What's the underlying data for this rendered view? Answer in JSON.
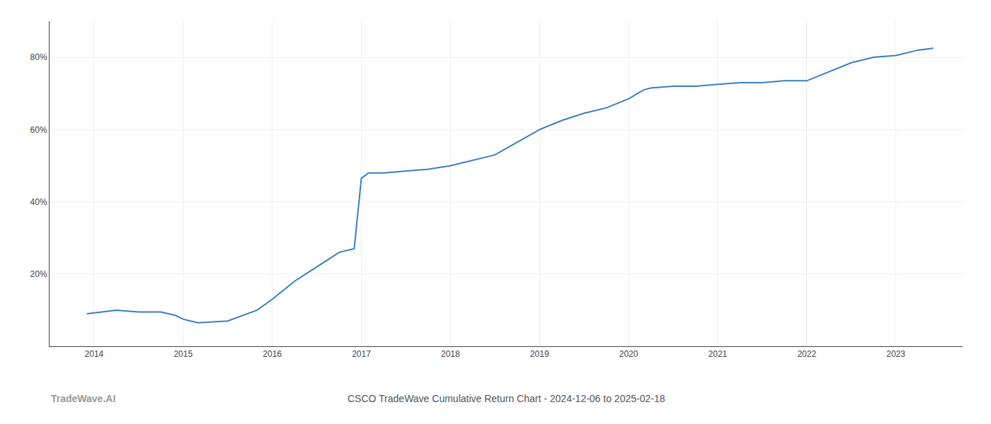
{
  "chart_data": {
    "type": "line",
    "title": "CSCO TradeWave Cumulative Return Chart - 2024-12-06 to 2025-02-18",
    "annotations": [
      "TradeWave.AI"
    ],
    "x": [
      2013.92,
      2014.08,
      2014.25,
      2014.5,
      2014.75,
      2014.92,
      2015.0,
      2015.08,
      2015.17,
      2015.5,
      2015.83,
      2016.0,
      2016.25,
      2016.5,
      2016.75,
      2016.92,
      2017.0,
      2017.08,
      2017.25,
      2017.5,
      2017.75,
      2018.0,
      2018.25,
      2018.5,
      2019.0,
      2019.25,
      2019.5,
      2019.75,
      2020.0,
      2020.17,
      2020.25,
      2020.5,
      2020.75,
      2021.0,
      2021.25,
      2021.5,
      2021.75,
      2022.0,
      2022.25,
      2022.5,
      2022.75,
      2023.0,
      2023.25,
      2023.42
    ],
    "values": [
      9.0,
      9.5,
      10.0,
      9.5,
      9.5,
      8.5,
      7.5,
      7.0,
      6.5,
      7.0,
      10.0,
      13.0,
      18.0,
      22.0,
      26.0,
      27.0,
      46.5,
      48.0,
      48.0,
      48.5,
      49.0,
      50.0,
      51.5,
      53.0,
      60.0,
      62.5,
      64.5,
      66.0,
      68.5,
      71.0,
      71.5,
      72.0,
      72.0,
      72.5,
      73.0,
      73.0,
      73.5,
      73.5,
      76.0,
      78.5,
      80.0,
      80.5,
      82.0,
      82.5
    ],
    "color": "#3a7ebf",
    "xlim": [
      2013.5,
      2023.75
    ],
    "ylim": [
      0,
      90
    ],
    "xticks": [
      2014,
      2015,
      2016,
      2017,
      2018,
      2019,
      2020,
      2021,
      2022,
      2023
    ],
    "yticks": [
      {
        "value": 20,
        "label": "20%"
      },
      {
        "value": 40,
        "label": "40%"
      },
      {
        "value": 60,
        "label": "60%"
      },
      {
        "value": 80,
        "label": "80%"
      }
    ],
    "grid": true
  }
}
